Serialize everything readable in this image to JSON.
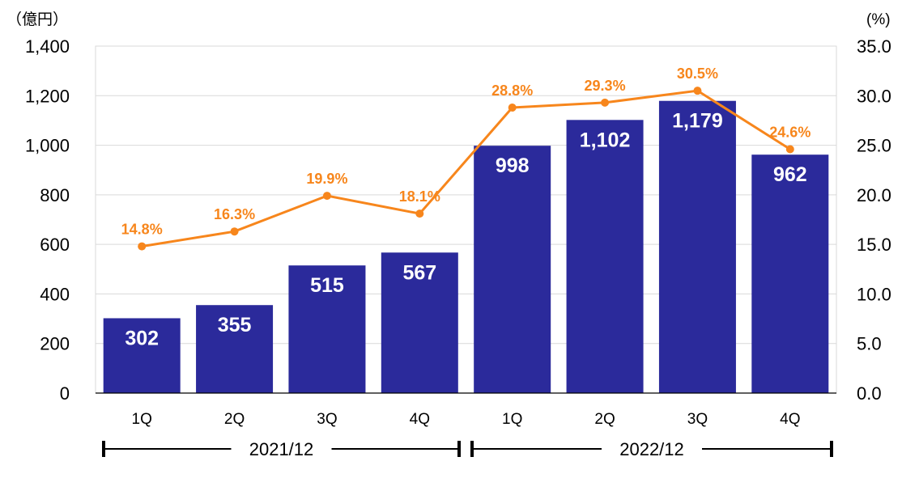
{
  "chart_data": {
    "type": "bar+line",
    "units": {
      "left": "（億円）",
      "right": "(%)"
    },
    "categories": [
      "1Q",
      "2Q",
      "3Q",
      "4Q",
      "1Q",
      "2Q",
      "3Q",
      "4Q"
    ],
    "groups": [
      {
        "label": "2021/12",
        "span": [
          0,
          3
        ]
      },
      {
        "label": "2022/12",
        "span": [
          4,
          7
        ]
      }
    ],
    "series": [
      {
        "name": "bar",
        "axis": "left",
        "values": [
          302,
          355,
          515,
          567,
          998,
          1102,
          1179,
          962
        ],
        "labels": [
          "302",
          "355",
          "515",
          "567",
          "998",
          "1,102",
          "1,179",
          "962"
        ],
        "color": "#2b2a9b"
      },
      {
        "name": "line",
        "axis": "right",
        "values": [
          14.8,
          16.3,
          19.9,
          18.1,
          28.8,
          29.3,
          30.5,
          24.6
        ],
        "labels": [
          "14.8%",
          "16.3%",
          "19.9%",
          "18.1%",
          "28.8%",
          "29.3%",
          "30.5%",
          "24.6%"
        ],
        "color": "#f7861c"
      }
    ],
    "left_axis": {
      "ylim": [
        0,
        1400
      ],
      "ticks": [
        "0",
        "200",
        "400",
        "600",
        "800",
        "1,000",
        "1,200",
        "1,400"
      ]
    },
    "right_axis": {
      "ylim": [
        0,
        35
      ],
      "ticks": [
        "0.0",
        "5.0",
        "10.0",
        "15.0",
        "20.0",
        "25.0",
        "30.0",
        "35.0"
      ]
    },
    "grid": true
  }
}
